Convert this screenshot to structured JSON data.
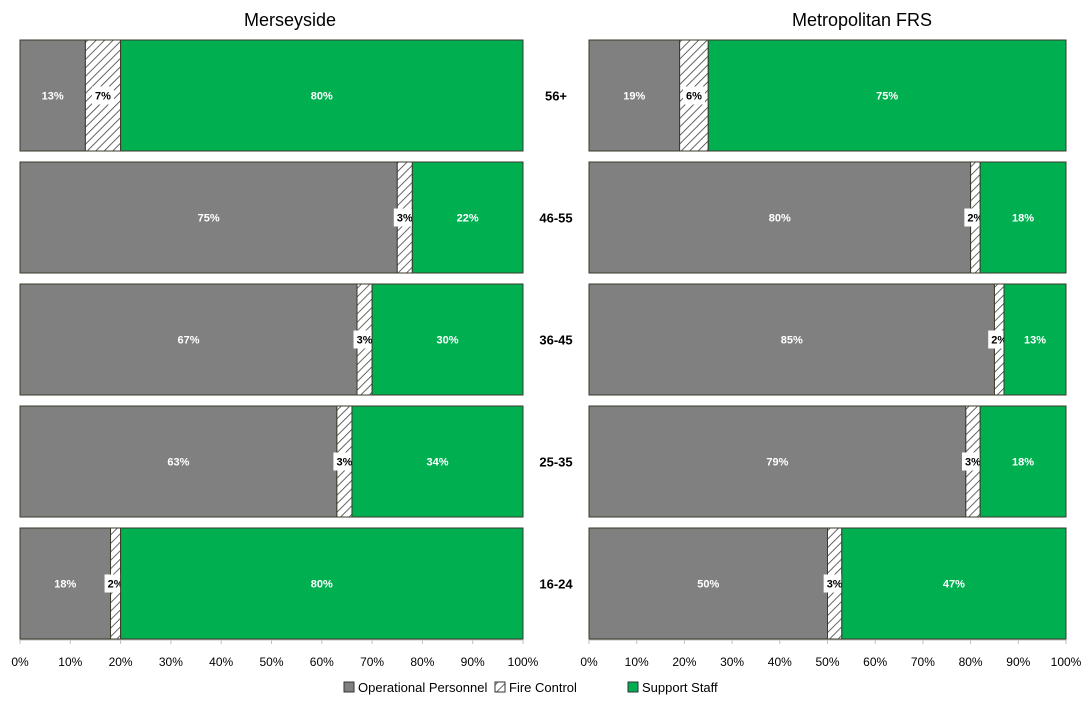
{
  "chart_data": {
    "type": "bar",
    "orientation": "horizontal",
    "stacked": true,
    "categories": [
      "56+",
      "46-55",
      "36-45",
      "25-35",
      "16-24"
    ],
    "series_defs": [
      {
        "name": "Operational Personnel",
        "color": "#808080",
        "pattern": "solid"
      },
      {
        "name": "Fire Control",
        "color": "#ffffff",
        "pattern": "hatch"
      },
      {
        "name": "Support Staff",
        "color": "#00b050",
        "pattern": "solid"
      }
    ],
    "panels": [
      {
        "title": "Merseyside",
        "series": [
          {
            "name": "Operational Personnel",
            "values": [
              13,
              75,
              67,
              63,
              18
            ]
          },
          {
            "name": "Fire Control",
            "values": [
              7,
              3,
              3,
              3,
              2
            ]
          },
          {
            "name": "Support Staff",
            "values": [
              80,
              22,
              30,
              34,
              80
            ]
          }
        ]
      },
      {
        "title": "Metropolitan FRS",
        "series": [
          {
            "name": "Operational Personnel",
            "values": [
              19,
              80,
              85,
              79,
              50
            ]
          },
          {
            "name": "Fire Control",
            "values": [
              6,
              2,
              2,
              3,
              3
            ]
          },
          {
            "name": "Support Staff",
            "values": [
              75,
              18,
              13,
              18,
              47
            ]
          }
        ]
      }
    ],
    "xlim": [
      0,
      100
    ],
    "x_ticks": [
      "0%",
      "10%",
      "20%",
      "30%",
      "40%",
      "50%",
      "60%",
      "70%",
      "80%",
      "90%",
      "100%"
    ],
    "value_format": "percent",
    "legend_position": "bottom",
    "grid": false
  }
}
